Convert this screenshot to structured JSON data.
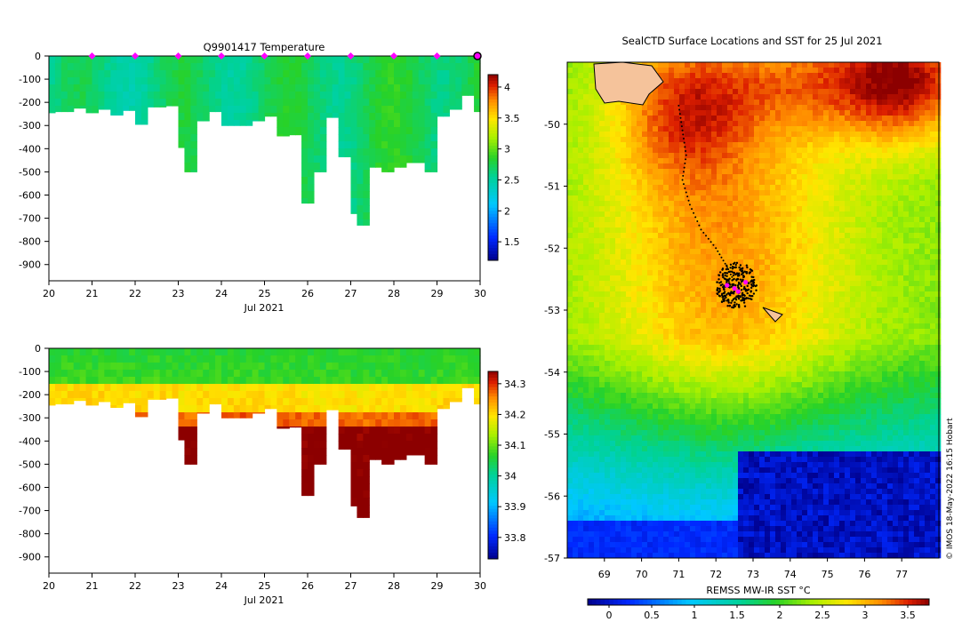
{
  "chart_data": [
    {
      "type": "heatmap",
      "title": "Q9901417  Temperature",
      "xlabel": "Jul 2021",
      "ylabel": "",
      "x_ticks": [
        "20",
        "21",
        "22",
        "23",
        "24",
        "25",
        "26",
        "27",
        "28",
        "29",
        "30"
      ],
      "y_ticks": [
        "0",
        "-100",
        "-200",
        "-300",
        "-400",
        "-500",
        "-600",
        "-700",
        "-800",
        "-900"
      ],
      "xlim": [
        20,
        30
      ],
      "ylim": [
        -970,
        0
      ],
      "colorbar_ticks": [
        "1.5",
        "2",
        "2.5",
        "3",
        "3.5",
        "4"
      ],
      "colorbar_range": [
        1.2,
        4.2
      ],
      "surface_markers_day": [
        21,
        22,
        23,
        24,
        25,
        26,
        27,
        28,
        29,
        30
      ],
      "profile_max_depth": [
        {
          "day": 20.0,
          "depth": -245
        },
        {
          "day": 20.4,
          "depth": -240
        },
        {
          "day": 20.7,
          "depth": -225
        },
        {
          "day": 21.0,
          "depth": -245
        },
        {
          "day": 21.3,
          "depth": -230
        },
        {
          "day": 21.6,
          "depth": -255
        },
        {
          "day": 21.9,
          "depth": -235
        },
        {
          "day": 22.2,
          "depth": -295
        },
        {
          "day": 22.5,
          "depth": -220
        },
        {
          "day": 22.8,
          "depth": -215
        },
        {
          "day": 23.1,
          "depth": -395
        },
        {
          "day": 23.3,
          "depth": -500
        },
        {
          "day": 23.6,
          "depth": -280
        },
        {
          "day": 23.9,
          "depth": -240
        },
        {
          "day": 24.2,
          "depth": -300
        },
        {
          "day": 24.5,
          "depth": -300
        },
        {
          "day": 24.8,
          "depth": -280
        },
        {
          "day": 25.1,
          "depth": -260
        },
        {
          "day": 25.4,
          "depth": -345
        },
        {
          "day": 25.7,
          "depth": -340
        },
        {
          "day": 26.0,
          "depth": -635
        },
        {
          "day": 26.3,
          "depth": -500
        },
        {
          "day": 26.6,
          "depth": -265
        },
        {
          "day": 26.9,
          "depth": -435
        },
        {
          "day": 27.1,
          "depth": -680
        },
        {
          "day": 27.3,
          "depth": -730
        },
        {
          "day": 27.6,
          "depth": -480
        },
        {
          "day": 27.9,
          "depth": -500
        },
        {
          "day": 28.2,
          "depth": -480
        },
        {
          "day": 28.5,
          "depth": -460
        },
        {
          "day": 28.8,
          "depth": -500
        },
        {
          "day": 29.1,
          "depth": -260
        },
        {
          "day": 29.4,
          "depth": -230
        },
        {
          "day": 29.7,
          "depth": -170
        },
        {
          "day": 29.9,
          "depth": -240
        }
      ]
    },
    {
      "type": "heatmap",
      "title": "",
      "xlabel": "Jul 2021",
      "ylabel": "",
      "x_ticks": [
        "20",
        "21",
        "22",
        "23",
        "24",
        "25",
        "26",
        "27",
        "28",
        "29",
        "30"
      ],
      "y_ticks": [
        "0",
        "-100",
        "-200",
        "-300",
        "-400",
        "-500",
        "-600",
        "-700",
        "-800",
        "-900"
      ],
      "xlim": [
        20,
        30
      ],
      "ylim": [
        -970,
        0
      ],
      "colorbar_ticks": [
        "33.8",
        "33.9",
        "34",
        "34.1",
        "34.2",
        "34.3"
      ],
      "colorbar_range": [
        33.73,
        34.34
      ]
    },
    {
      "type": "heatmap",
      "title": "SealCTD Surface Locations and SST for 25 Jul 2021",
      "xlabel": "",
      "ylabel": "",
      "x_ticks": [
        "69",
        "70",
        "71",
        "72",
        "73",
        "74",
        "75",
        "76",
        "77"
      ],
      "y_ticks": [
        "-50",
        "-51",
        "-52",
        "-53",
        "-54",
        "-55",
        "-56",
        "-57"
      ],
      "xlim": [
        68.0,
        78.0
      ],
      "ylim": [
        -57.0,
        -49.0
      ],
      "colorbar_label": "REMSS MW-IR SST °C",
      "colorbar_ticks": [
        "0",
        "0.5",
        "1",
        "1.5",
        "2",
        "2.5",
        "3",
        "3.5"
      ],
      "colorbar_range": [
        -0.25,
        3.75
      ],
      "track_points": [
        {
          "lon": 71.0,
          "lat": -49.7
        },
        {
          "lon": 71.1,
          "lat": -50.1
        },
        {
          "lon": 71.2,
          "lat": -50.5
        },
        {
          "lon": 71.1,
          "lat": -50.9
        },
        {
          "lon": 71.3,
          "lat": -51.3
        },
        {
          "lon": 71.6,
          "lat": -51.7
        },
        {
          "lon": 72.0,
          "lat": -52.0
        },
        {
          "lon": 72.3,
          "lat": -52.3
        },
        {
          "lon": 72.5,
          "lat": -52.55
        }
      ],
      "surface_locations": [
        {
          "lon": 72.3,
          "lat": -52.6
        },
        {
          "lon": 72.5,
          "lat": -52.65
        },
        {
          "lon": 72.8,
          "lat": -52.55
        },
        {
          "lon": 72.6,
          "lat": -52.7
        }
      ]
    }
  ],
  "credit": "© IMOS 18-May-2022 16:15 Hobart",
  "colors": {
    "marker": "#ff00ff",
    "land": "#f5c39b"
  }
}
